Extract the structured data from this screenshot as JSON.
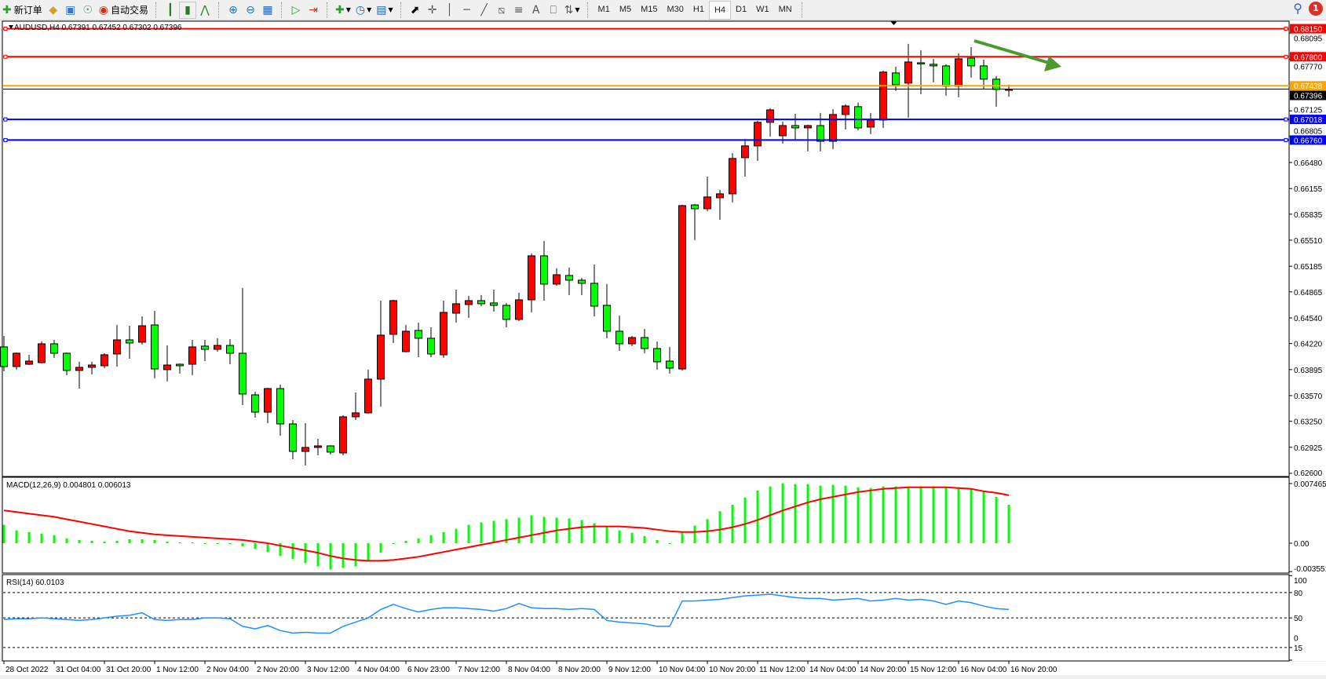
{
  "toolbar": {
    "new_order": {
      "label": "新订单",
      "icon": "new-order-icon"
    },
    "auto_trading": {
      "label": "自动交易",
      "icon": "auto-trading-icon"
    },
    "timeframes": [
      "M1",
      "M5",
      "M15",
      "M30",
      "H1",
      "H4",
      "D1",
      "W1",
      "MN"
    ],
    "active_timeframe": "H4",
    "notification_count": "1"
  },
  "chart": {
    "header": "AUDUSD,H4  0.67391 0.67452 0.67302 0.67396",
    "colors": {
      "bull_candle": "#ff0000",
      "bear_candle": "#00ff00",
      "background": "#ffffff"
    },
    "price_axis_ticks": [
      "0.68095",
      "0.67770",
      "0.67125",
      "0.66805",
      "0.66480",
      "0.66155",
      "0.65835",
      "0.65510",
      "0.65185",
      "0.64865",
      "0.64540",
      "0.64220",
      "0.63895",
      "0.63570",
      "0.63250",
      "0.62925",
      "0.62600"
    ],
    "horizontal_lines": [
      {
        "price": "0.68150",
        "color": "#ff0000"
      },
      {
        "price": "0.67800",
        "color": "#ff0000"
      },
      {
        "price": "0.67438",
        "color": "#ffa500"
      },
      {
        "price": "0.67018",
        "color": "#0000ff"
      },
      {
        "price": "0.66760",
        "color": "#0000ff"
      }
    ],
    "current_price": "0.67396",
    "trend_arrow": {
      "direction": "down",
      "color": "#4a9a2e"
    },
    "candles_ohlc": [
      [
        0.64178,
        0.64315,
        0.63874,
        0.63933
      ],
      [
        0.63933,
        0.64109,
        0.63894,
        0.64099
      ],
      [
        0.63962,
        0.6408,
        0.63952,
        0.64001
      ],
      [
        0.63982,
        0.64246,
        0.63972,
        0.64217
      ],
      [
        0.64217,
        0.64266,
        0.64041,
        0.64099
      ],
      [
        0.64099,
        0.64109,
        0.63825,
        0.63884
      ],
      [
        0.63884,
        0.63992,
        0.63658,
        0.63923
      ],
      [
        0.63923,
        0.63992,
        0.63835,
        0.63952
      ],
      [
        0.63943,
        0.64099,
        0.63913,
        0.6408
      ],
      [
        0.6409,
        0.64452,
        0.63933,
        0.64266
      ],
      [
        0.64266,
        0.64442,
        0.64031,
        0.64227
      ],
      [
        0.64237,
        0.6456,
        0.64207,
        0.64442
      ],
      [
        0.64452,
        0.64629,
        0.63786,
        0.63903
      ],
      [
        0.63894,
        0.64197,
        0.63747,
        0.63952
      ],
      [
        0.63962,
        0.63972,
        0.63845,
        0.63943
      ],
      [
        0.63962,
        0.64266,
        0.63825,
        0.64178
      ],
      [
        0.64188,
        0.64266,
        0.64001,
        0.64148
      ],
      [
        0.64148,
        0.64286,
        0.64119,
        0.64197
      ],
      [
        0.64197,
        0.64276,
        0.63962,
        0.64099
      ],
      [
        0.64099,
        0.64913,
        0.63453,
        0.6359
      ],
      [
        0.6358,
        0.63619,
        0.63296,
        0.63364
      ],
      [
        0.63364,
        0.63668,
        0.63227,
        0.63658
      ],
      [
        0.63658,
        0.63707,
        0.6307,
        0.63217
      ],
      [
        0.63217,
        0.63266,
        0.62776,
        0.62874
      ],
      [
        0.62874,
        0.63227,
        0.62698,
        0.62923
      ],
      [
        0.62923,
        0.63031,
        0.62825,
        0.62943
      ],
      [
        0.62943,
        0.6295,
        0.62835,
        0.62865
      ],
      [
        0.62855,
        0.63325,
        0.62825,
        0.63306
      ],
      [
        0.63306,
        0.63609,
        0.63266,
        0.63355
      ],
      [
        0.63355,
        0.63894,
        0.63345,
        0.63776
      ],
      [
        0.63776,
        0.64756,
        0.63433,
        0.64325
      ],
      [
        0.64335,
        0.64766,
        0.64227,
        0.64756
      ],
      [
        0.64119,
        0.64452,
        0.6411,
        0.64374
      ],
      [
        0.64384,
        0.64482,
        0.6405,
        0.64286
      ],
      [
        0.64286,
        0.64423,
        0.6405,
        0.6409
      ],
      [
        0.6408,
        0.64756,
        0.64041,
        0.64609
      ],
      [
        0.64599,
        0.64893,
        0.64482,
        0.64717
      ],
      [
        0.64707,
        0.64815,
        0.6454,
        0.64756
      ],
      [
        0.64756,
        0.64825,
        0.64687,
        0.64717
      ],
      [
        0.64727,
        0.64893,
        0.64619,
        0.64697
      ],
      [
        0.64697,
        0.64727,
        0.64423,
        0.64521
      ],
      [
        0.64521,
        0.64854,
        0.64501,
        0.64766
      ],
      [
        0.64766,
        0.65344,
        0.64609,
        0.65315
      ],
      [
        0.65315,
        0.65501,
        0.64756,
        0.64962
      ],
      [
        0.64962,
        0.65158,
        0.64942,
        0.65079
      ],
      [
        0.6507,
        0.65168,
        0.64825,
        0.65011
      ],
      [
        0.65011,
        0.6504,
        0.64825,
        0.64972
      ],
      [
        0.64972,
        0.65207,
        0.6456,
        0.64687
      ],
      [
        0.64697,
        0.64962,
        0.64286,
        0.64374
      ],
      [
        0.64374,
        0.6457,
        0.64129,
        0.64217
      ],
      [
        0.64217,
        0.64315,
        0.64188,
        0.64295
      ],
      [
        0.64295,
        0.64403,
        0.64099,
        0.64158
      ],
      [
        0.64158,
        0.64246,
        0.63894,
        0.63992
      ],
      [
        0.64001,
        0.64178,
        0.63845,
        0.63913
      ],
      [
        0.63903,
        0.65952,
        0.63884,
        0.65942
      ],
      [
        0.6595,
        0.65962,
        0.65511,
        0.65903
      ],
      [
        0.65903,
        0.66304,
        0.65873,
        0.6605
      ],
      [
        0.6604,
        0.66138,
        0.65765,
        0.66089
      ],
      [
        0.66089,
        0.66598,
        0.65981,
        0.6653
      ],
      [
        0.6654,
        0.66775,
        0.66304,
        0.66687
      ],
      [
        0.66687,
        0.67,
        0.665,
        0.66981
      ],
      [
        0.66981,
        0.67157,
        0.66804,
        0.67137
      ],
      [
        0.66814,
        0.6699,
        0.66716,
        0.66941
      ],
      [
        0.66941,
        0.67088,
        0.66765,
        0.66912
      ],
      [
        0.66912,
        0.66951,
        0.66618,
        0.66941
      ],
      [
        0.66941,
        0.67098,
        0.66618,
        0.66745
      ],
      [
        0.66745,
        0.67147,
        0.66647,
        0.67079
      ],
      [
        0.67079,
        0.67206,
        0.66892,
        0.67186
      ],
      [
        0.67177,
        0.67226,
        0.66883,
        0.66912
      ],
      [
        0.66922,
        0.67098,
        0.66834,
        0.6701
      ],
      [
        0.6701,
        0.67627,
        0.66912,
        0.67608
      ],
      [
        0.67598,
        0.67676,
        0.67373,
        0.67451
      ],
      [
        0.67471,
        0.67961,
        0.67039,
        0.67735
      ],
      [
        0.67725,
        0.67882,
        0.67333,
        0.67716
      ],
      [
        0.67706,
        0.67774,
        0.6748,
        0.67686
      ],
      [
        0.67686,
        0.67706,
        0.67314,
        0.67431
      ],
      [
        0.67431,
        0.67843,
        0.67294,
        0.67774
      ],
      [
        0.67784,
        0.67921,
        0.67539,
        0.67686
      ],
      [
        0.67686,
        0.67765,
        0.67392,
        0.6752
      ],
      [
        0.6752,
        0.67559,
        0.67177,
        0.67392
      ],
      [
        0.67391,
        0.67452,
        0.67302,
        0.67396
      ]
    ],
    "time_axis_labels": [
      "28 Oct 2022",
      "31 Oct 04:00",
      "31 Oct 20:00",
      "1 Nov 12:00",
      "2 Nov 04:00",
      "2 Nov 20:00",
      "3 Nov 12:00",
      "4 Nov 04:00",
      "6 Nov 23:00",
      "7 Nov 12:00",
      "8 Nov 04:00",
      "8 Nov 20:00",
      "9 Nov 12:00",
      "10 Nov 04:00",
      "10 Nov 20:00",
      "11 Nov 12:00",
      "14 Nov 04:00",
      "14 Nov 20:00",
      "15 Nov 12:00",
      "16 Nov 04:00",
      "16 Nov 20:00"
    ]
  },
  "macd": {
    "label": "MACD(12,26,9) 0.004801 0.006013",
    "axis_labels": [
      "0.007465",
      "0.00",
      "-0.003551"
    ],
    "range": [
      -0.003551,
      0.007465
    ],
    "histogram_color": "#00ff00",
    "signal_color": "#ff0000",
    "histogram": [
      0.0023,
      0.0016,
      0.0014,
      0.0012,
      0.001,
      0.0006,
      0.0004,
      0.0003,
      0.0002,
      0.0003,
      0.0005,
      0.0005,
      0.0004,
      0.0002,
      0.0001,
      0.0001,
      0.0,
      0.0,
      -0.0001,
      -0.0004,
      -0.0007,
      -0.0011,
      -0.0016,
      -0.002,
      -0.0025,
      -0.0029,
      -0.0033,
      -0.0031,
      -0.0029,
      -0.0023,
      -0.0012,
      -0.0001,
      0.0003,
      0.0006,
      0.001,
      0.0014,
      0.0018,
      0.0023,
      0.0026,
      0.0028,
      0.003,
      0.0032,
      0.0035,
      0.0033,
      0.0032,
      0.0031,
      0.0029,
      0.0025,
      0.0021,
      0.0016,
      0.0013,
      0.0009,
      0.0004,
      0.0,
      0.0014,
      0.0022,
      0.003,
      0.004,
      0.0048,
      0.0057,
      0.0066,
      0.0071,
      0.0075,
      0.0074,
      0.0074,
      0.0072,
      0.0073,
      0.0072,
      0.007,
      0.0069,
      0.0071,
      0.0071,
      0.0071,
      0.0071,
      0.0071,
      0.007,
      0.007,
      0.0068,
      0.0065,
      0.0058,
      0.0048
    ],
    "signal": [
      0.0041,
      0.0039,
      0.0037,
      0.0035,
      0.0033,
      0.003,
      0.0027,
      0.0024,
      0.0021,
      0.0018,
      0.0015,
      0.0013,
      0.0011,
      0.001,
      0.0009,
      0.0008,
      0.0007,
      0.0006,
      0.0005,
      0.0004,
      0.0002,
      0.0,
      -0.0003,
      -0.0006,
      -0.0009,
      -0.0012,
      -0.0016,
      -0.0019,
      -0.0021,
      -0.0022,
      -0.0022,
      -0.0021,
      -0.0019,
      -0.0017,
      -0.0014,
      -0.0011,
      -0.0008,
      -0.0005,
      -0.0002,
      0.0001,
      0.0004,
      0.0007,
      0.001,
      0.0013,
      0.0016,
      0.0018,
      0.002,
      0.0021,
      0.0021,
      0.0021,
      0.002,
      0.0019,
      0.0017,
      0.0015,
      0.0014,
      0.0014,
      0.0015,
      0.0017,
      0.002,
      0.0024,
      0.0029,
      0.0035,
      0.0041,
      0.0046,
      0.0051,
      0.0055,
      0.0058,
      0.0061,
      0.0064,
      0.0066,
      0.0068,
      0.0069,
      0.007,
      0.007,
      0.007,
      0.007,
      0.0069,
      0.0068,
      0.0065,
      0.0063,
      0.006
    ]
  },
  "rsi": {
    "label": "RSI(14) 60.0103",
    "axis_labels": [
      "100",
      "80",
      "50",
      "15",
      "0"
    ],
    "levels": [
      80,
      50,
      15
    ],
    "line_color": "#1e90ff",
    "values": [
      48,
      49,
      49,
      50,
      49,
      48,
      47,
      48,
      50,
      52,
      53,
      56,
      48,
      47,
      48,
      48,
      50,
      50,
      49,
      40,
      37,
      41,
      35,
      32,
      33,
      32,
      32,
      40,
      45,
      50,
      60,
      66,
      61,
      57,
      60,
      62,
      62,
      61,
      60,
      58,
      61,
      67,
      62,
      61,
      61,
      60,
      61,
      60,
      47,
      45,
      44,
      43,
      40,
      40,
      70,
      70,
      71,
      72,
      74,
      76,
      77,
      78,
      76,
      74,
      73,
      73,
      71,
      72,
      73,
      70,
      71,
      73,
      71,
      72,
      70,
      66,
      70,
      68,
      64,
      61,
      60
    ]
  }
}
